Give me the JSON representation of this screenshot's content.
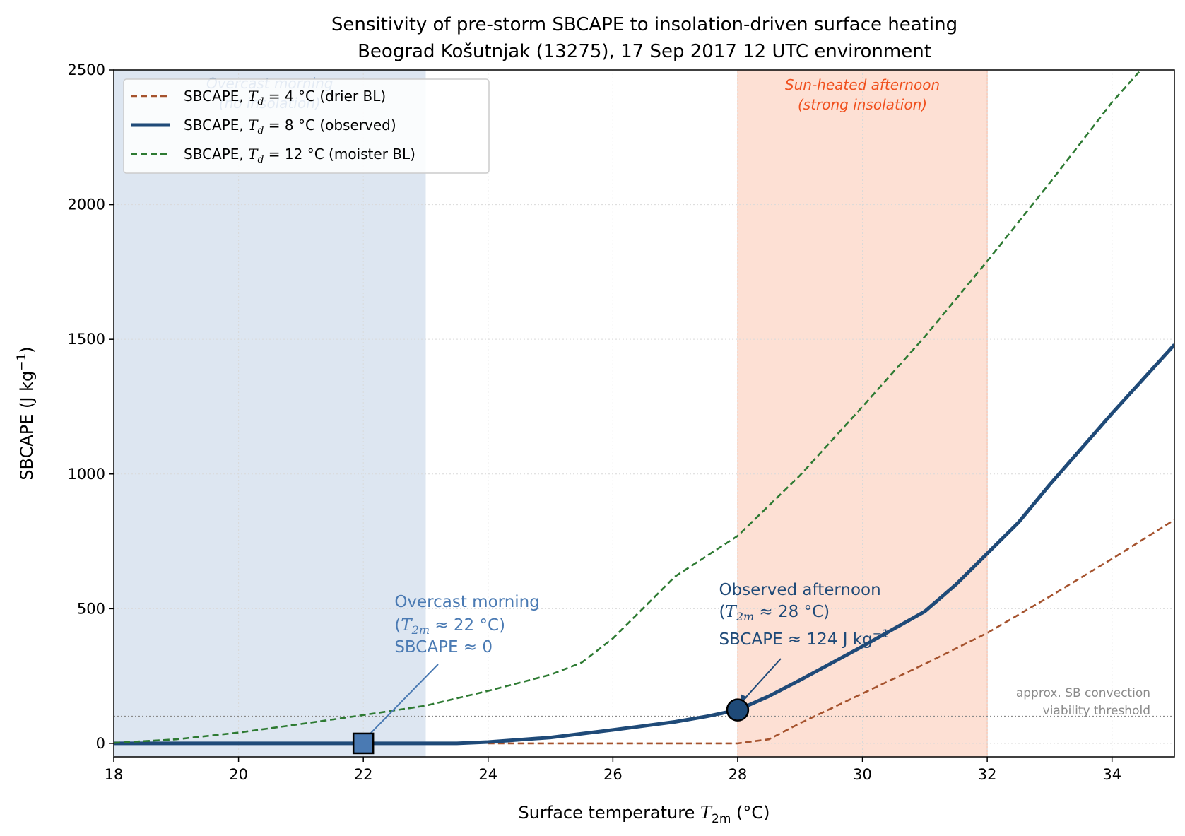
{
  "chart_data": {
    "type": "line",
    "title": "Sensitivity of pre-storm SBCAPE to insolation-driven surface heating",
    "subtitle": "Beograd Košutnjak (13275), 17 Sep 2017 12 UTC environment",
    "xlabel": {
      "prefix": "Surface temperature ",
      "var": "T",
      "sub": "2m",
      "suffix": " (°C)"
    },
    "ylabel": {
      "prefix": "SBCAPE (J kg",
      "sup": "−1",
      "suffix": ")"
    },
    "xlim": [
      18,
      35
    ],
    "ylim": [
      -50,
      2500
    ],
    "xticks": [
      18,
      20,
      22,
      24,
      26,
      28,
      30,
      32,
      34
    ],
    "yticks": [
      0,
      500,
      1000,
      1500,
      2000,
      2500
    ],
    "grid": true,
    "legend_position": "top-left",
    "regions": [
      {
        "name": "overcast-region",
        "x_range": [
          18,
          23
        ],
        "color": "#dde6f1",
        "label_line1": "Overcast morning",
        "label_line2": "(no insolation)",
        "label_color": "#4a7ab3"
      },
      {
        "name": "sunheated-region",
        "x_range": [
          28,
          32
        ],
        "color": "#fde0d4",
        "label_line1": "Sun-heated afternoon",
        "label_line2": "(strong insolation)",
        "label_color": "#f0501e"
      }
    ],
    "threshold": {
      "y": 100,
      "label_line1": "approx. SB convection",
      "label_line2": "viability threshold",
      "color": "#8a8a8a"
    },
    "series": [
      {
        "name": "SBCAPE, T_d = 4 °C (drier BL)",
        "legend_prefix": "SBCAPE, ",
        "legend_value": " = 4 °C",
        "legend_suffix": " (drier BL)",
        "color": "#a5522d",
        "dash": true,
        "width": 2.6,
        "x": [
          24,
          25,
          26,
          27,
          28,
          28.5,
          29,
          29.5,
          30,
          31,
          32,
          33,
          34,
          35
        ],
        "y": [
          0,
          0,
          0,
          0,
          0,
          15,
          75,
          130,
          185,
          295,
          410,
          545,
          685,
          830
        ]
      },
      {
        "name": "SBCAPE, T_d = 8 °C (observed)",
        "legend_prefix": "SBCAPE, ",
        "legend_value": " = 8 °C",
        "legend_suffix": " (observed)",
        "color": "#1f4a78",
        "dash": false,
        "width": 5,
        "x": [
          18,
          19,
          20,
          21,
          22,
          23,
          23.5,
          24,
          25,
          26,
          27,
          27.5,
          28,
          28.5,
          29,
          30,
          31,
          31.5,
          32,
          32.5,
          33,
          34,
          35
        ],
        "y": [
          0,
          0,
          0,
          0,
          0,
          0,
          0,
          5,
          22,
          50,
          80,
          100,
          124,
          175,
          235,
          360,
          490,
          590,
          705,
          820,
          960,
          1225,
          1480
        ]
      },
      {
        "name": "SBCAPE, T_d = 12 °C (moister BL)",
        "legend_prefix": "SBCAPE, ",
        "legend_value": " = 12 °C",
        "legend_suffix": " (moister BL)",
        "color": "#2d7a32",
        "dash": true,
        "width": 2.6,
        "x": [
          18,
          19,
          20,
          21,
          22,
          23,
          24,
          25,
          25.5,
          26,
          27,
          28,
          29,
          30,
          31,
          32,
          33,
          34,
          34.5
        ],
        "y": [
          2,
          15,
          40,
          72,
          105,
          140,
          195,
          255,
          300,
          390,
          620,
          770,
          995,
          1250,
          1510,
          1790,
          2080,
          2380,
          2510
        ]
      }
    ],
    "points": [
      {
        "name": "overcast-point",
        "x": 22,
        "y": 0,
        "shape": "square",
        "color": "#4a7ab3"
      },
      {
        "name": "observed-point",
        "x": 28,
        "y": 124,
        "shape": "circle",
        "color": "#1f4a78"
      }
    ],
    "annotations": [
      {
        "name": "overcast-annotation",
        "line1": "Overcast morning",
        "line2_var": "T",
        "line2_sub": "2m",
        "line2_rest": " ≈ 22 °C)",
        "line3": "SBCAPE  ≈ 0",
        "text_x": 22.5,
        "color": "#4a7ab3"
      },
      {
        "name": "observed-annotation",
        "line1": "Observed afternoon",
        "line2_var": "T",
        "line2_sub": "2m",
        "line2_rest": " ≈ 28 °C)",
        "line3_prefix": "SBCAPE  ≈ 124 J kg",
        "line3_sup": "−1",
        "text_x": 27.7,
        "color": "#1f4a78"
      }
    ]
  }
}
